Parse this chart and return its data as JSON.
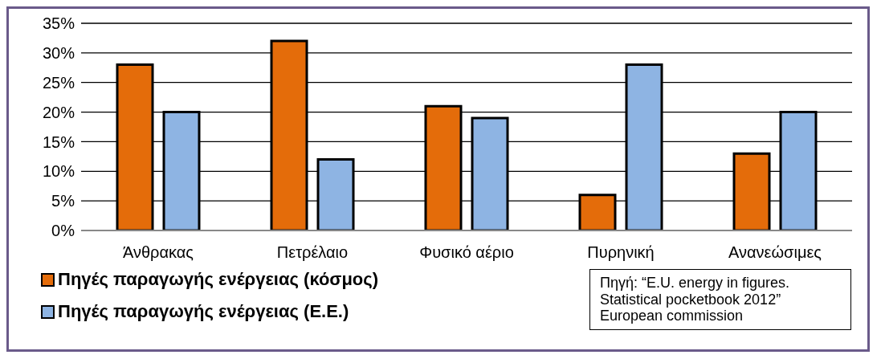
{
  "chart_data": {
    "type": "bar",
    "categories": [
      "Άνθρακας",
      "Πετρέλαιο",
      "Φυσικό αέριο",
      "Πυρηνική",
      "Ανανεώσιμες"
    ],
    "series": [
      {
        "name": "Πηγές παραγωγής ενέργειας (κόσμος)",
        "color": "#e46c0a",
        "values": [
          28,
          32,
          21,
          6,
          13
        ]
      },
      {
        "name": "Πηγές παραγωγής ενέργειας (Ε.Ε.)",
        "color": "#8eb4e3",
        "values": [
          20,
          12,
          19,
          28,
          20
        ]
      }
    ],
    "ylim": [
      0,
      35
    ],
    "yticks": [
      {
        "value": 0,
        "label": "0%"
      },
      {
        "value": 5,
        "label": "5%"
      },
      {
        "value": 10,
        "label": "10%"
      },
      {
        "value": 15,
        "label": "15%"
      },
      {
        "value": 20,
        "label": "20%"
      },
      {
        "value": 25,
        "label": "25%"
      },
      {
        "value": 30,
        "label": "30%"
      },
      {
        "value": 35,
        "label": "35%"
      }
    ],
    "grid": "y",
    "legend": "bottom left",
    "annotations": [
      "Πηγή: “E.U. energy in figures. Statistical pocketbook 2012” European commission"
    ]
  }
}
